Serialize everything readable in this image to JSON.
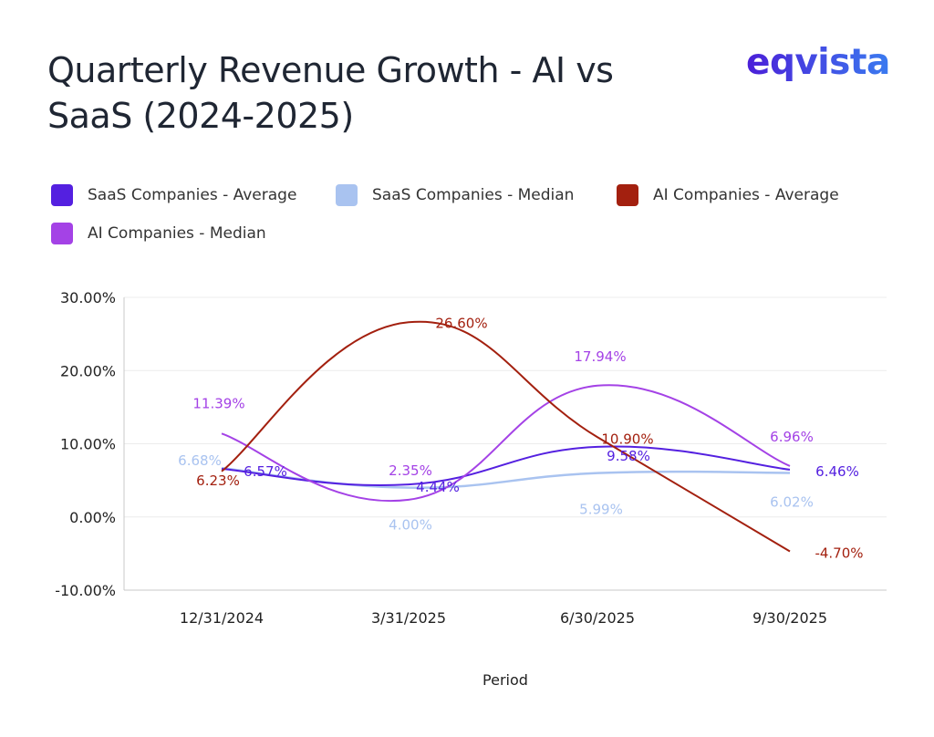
{
  "title": "Quarterly Revenue Growth - AI vs SaaS (2024-2025)",
  "logo": "eqvista",
  "chart_data": {
    "type": "line",
    "title": "Quarterly Revenue Growth - AI vs SaaS (2024-2025)",
    "xlabel": "Period",
    "ylabel": "",
    "categories": [
      "12/31/2024",
      "3/31/2025",
      "6/30/2025",
      "9/30/2025"
    ],
    "ylim": [
      -10,
      30
    ],
    "yticks": [
      "30.00%",
      "20.00%",
      "10.00%",
      "0.00%",
      "-10.00%"
    ],
    "grid": true,
    "smooth": true,
    "legend_position": "top",
    "series": [
      {
        "name": "SaaS Companies - Average",
        "color": "#5420e0",
        "values": [
          6.57,
          4.44,
          9.58,
          6.46
        ],
        "labels": [
          "6.57%",
          "4.44%",
          "9.58%",
          "6.46%"
        ]
      },
      {
        "name": "SaaS Companies - Median",
        "color": "#a9c3f0",
        "values": [
          6.68,
          4.0,
          5.99,
          6.02
        ],
        "labels": [
          "6.68%",
          "4.00%",
          "5.99%",
          "6.02%"
        ]
      },
      {
        "name": "AI Companies - Average",
        "color": "#a3200f",
        "values": [
          6.23,
          26.6,
          10.9,
          -4.7
        ],
        "labels": [
          "6.23%",
          "26.60%",
          "10.90%",
          "-4.70%"
        ]
      },
      {
        "name": "AI Companies - Median",
        "color": "#a442e6",
        "values": [
          11.39,
          2.35,
          17.94,
          6.96
        ],
        "labels": [
          "11.39%",
          "2.35%",
          "17.94%",
          "6.96%"
        ]
      }
    ]
  }
}
